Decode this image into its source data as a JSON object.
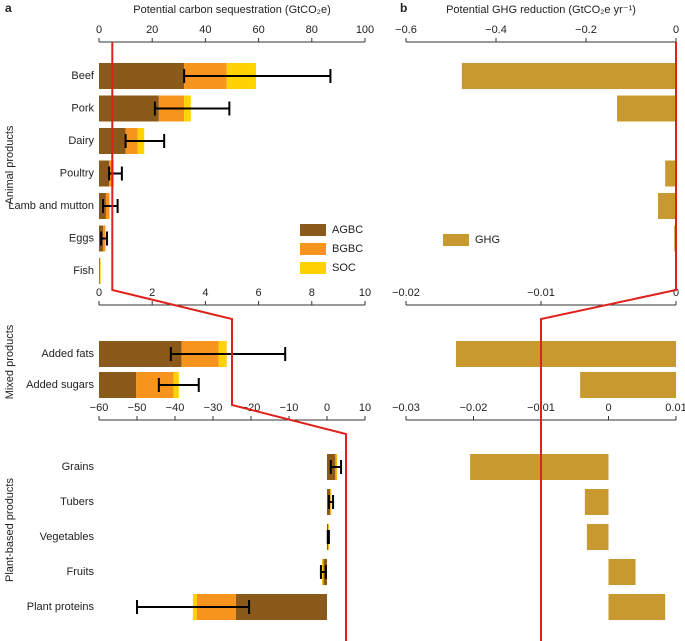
{
  "chart_data": [
    {
      "type": "stacked_bar_h",
      "label": "a",
      "xlabel": "Potential carbon sequestration (GtCO₂e)",
      "legend": "center",
      "groups": [
        {
          "name": "Animal products",
          "categories": [
            "Beef",
            "Pork",
            "Dairy",
            "Poultry",
            "Lamb and mutton",
            "Eggs",
            "Fish"
          ],
          "xlim": [
            0,
            100
          ],
          "xticks": [
            0,
            20,
            40,
            60,
            80,
            100
          ],
          "reference": 5,
          "series": [
            {
              "name": "AGBC",
              "color": "#8b5a1a",
              "values": [
                32,
                22.5,
                10,
                3.8,
                2.6,
                1.5,
                0.3
              ]
            },
            {
              "name": "BGBC",
              "color": "#f7941d",
              "values": [
                16,
                9.5,
                4.5,
                1.5,
                1.2,
                0.8,
                0.1
              ]
            },
            {
              "name": "SOC",
              "color": "#ffd200",
              "values": [
                11,
                2.5,
                2.5,
                0.3,
                0.3,
                0.2,
                0
              ]
            }
          ],
          "error_low": [
            32,
            21,
            10,
            3.8,
            1.5,
            0.8,
            null
          ],
          "error_high": [
            87,
            49,
            24.5,
            8.6,
            7,
            3,
            null
          ]
        },
        {
          "name": "Mixed products",
          "categories": [
            "Added fats",
            "Added sugars"
          ],
          "xlim": [
            0,
            10
          ],
          "xticks": [
            0,
            2,
            4,
            6,
            8,
            10
          ],
          "reference": 5,
          "series": [
            {
              "name": "AGBC",
              "color": "#8b5a1a",
              "values": [
                3.1,
                1.4
              ]
            },
            {
              "name": "BGBC",
              "color": "#f7941d",
              "values": [
                1.4,
                1.4
              ]
            },
            {
              "name": "SOC",
              "color": "#ffd200",
              "values": [
                0.3,
                0.2
              ]
            }
          ],
          "error_low": [
            2.7,
            2.25
          ],
          "error_high": [
            7,
            3.75
          ]
        },
        {
          "name": "Plant-based products",
          "categories": [
            "Grains",
            "Tubers",
            "Vegetables",
            "Fruits",
            "Plant proteins"
          ],
          "xlim": [
            -60,
            10
          ],
          "xticks": [
            {
              "value": -60,
              "label": "−60"
            },
            {
              "value": -50,
              "label": "−50"
            },
            {
              "value": -40,
              "label": "−40"
            },
            {
              "value": -30,
              "label": "−30"
            },
            {
              "value": -20,
              "label": "−20"
            },
            {
              "value": -10,
              "label": "−10"
            },
            0,
            10
          ],
          "reference": 5,
          "series": [
            {
              "name": "AGBC",
              "color": "#8b5a1a",
              "values": [
                2.1,
                0.8,
                0.3,
                -0.9,
                -24
              ]
            },
            {
              "name": "BGBC",
              "color": "#f7941d",
              "values": [
                0.4,
                0.2,
                0.1,
                -0.3,
                -10.3
              ]
            },
            {
              "name": "SOC",
              "color": "#ffd200",
              "values": [
                0.1,
                0.1,
                0.05,
                -0.1,
                -1
              ]
            }
          ],
          "error_low": [
            1,
            0.5,
            0.2,
            -1.6,
            -50
          ],
          "error_high": [
            3.7,
            1.6,
            0.5,
            -0.3,
            -20.5
          ]
        }
      ]
    },
    {
      "type": "bar_h",
      "label": "b",
      "xlabel": "Potential GHG reduction (GtCO₂e yr⁻¹)",
      "legend": "center",
      "groups": [
        {
          "xlim": [
            -0.6,
            0
          ],
          "xticks": [
            {
              "value": -0.6,
              "label": "−0.6"
            },
            {
              "value": -0.4,
              "label": "−0.4"
            },
            {
              "value": -0.2,
              "label": "−0.2"
            },
            0
          ],
          "reference": 0,
          "series": [
            {
              "name": "GHG",
              "color": "#c8992e",
              "values": [
                -0.476,
                -0.131,
                0,
                -0.024,
                -0.04,
                -0.004,
                -0.002
              ]
            }
          ]
        },
        {
          "xlim": [
            -0.02,
            0
          ],
          "xticks": [
            {
              "value": -0.02,
              "label": "−0.02"
            },
            {
              "value": -0.01,
              "label": "−0.01"
            },
            0
          ],
          "reference": -0.01,
          "series": [
            {
              "name": "GHG",
              "color": "#c8992e",
              "values": [
                -0.0163,
                -0.0071
              ]
            }
          ]
        },
        {
          "xlim": [
            -0.03,
            0.01
          ],
          "xticks": [
            {
              "value": -0.03,
              "label": "−0.03"
            },
            {
              "value": -0.02,
              "label": "−0.02"
            },
            {
              "value": -0.01,
              "label": "−0.01"
            },
            0,
            0.01
          ],
          "reference": -0.01,
          "series": [
            {
              "name": "GHG",
              "color": "#c8992e",
              "values": [
                -0.0205,
                -0.0035,
                -0.0032,
                0.004,
                0.0084
              ]
            }
          ]
        }
      ]
    }
  ]
}
